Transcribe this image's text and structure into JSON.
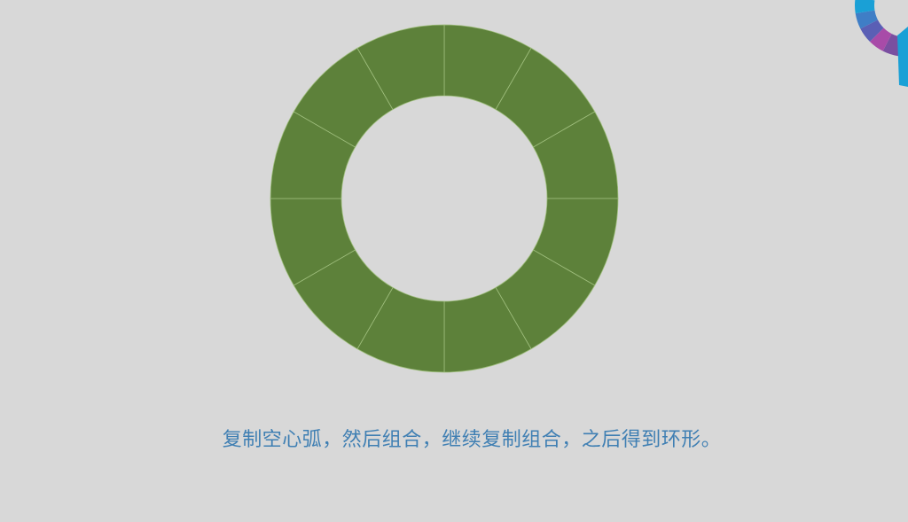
{
  "ring": {
    "segment_count": 12,
    "fill_color": "#5d813a",
    "separator_color": "#9fbe7d"
  },
  "logo": {
    "colors": [
      "#7a4fa0",
      "#a84ba8",
      "#5a5fb5",
      "#3f7ec6",
      "#1aa0d6"
    ]
  },
  "caption": {
    "text": "复制空心弧，然后组合，继续复制组合，之后得到环形。",
    "color": "#3f7fb3"
  }
}
